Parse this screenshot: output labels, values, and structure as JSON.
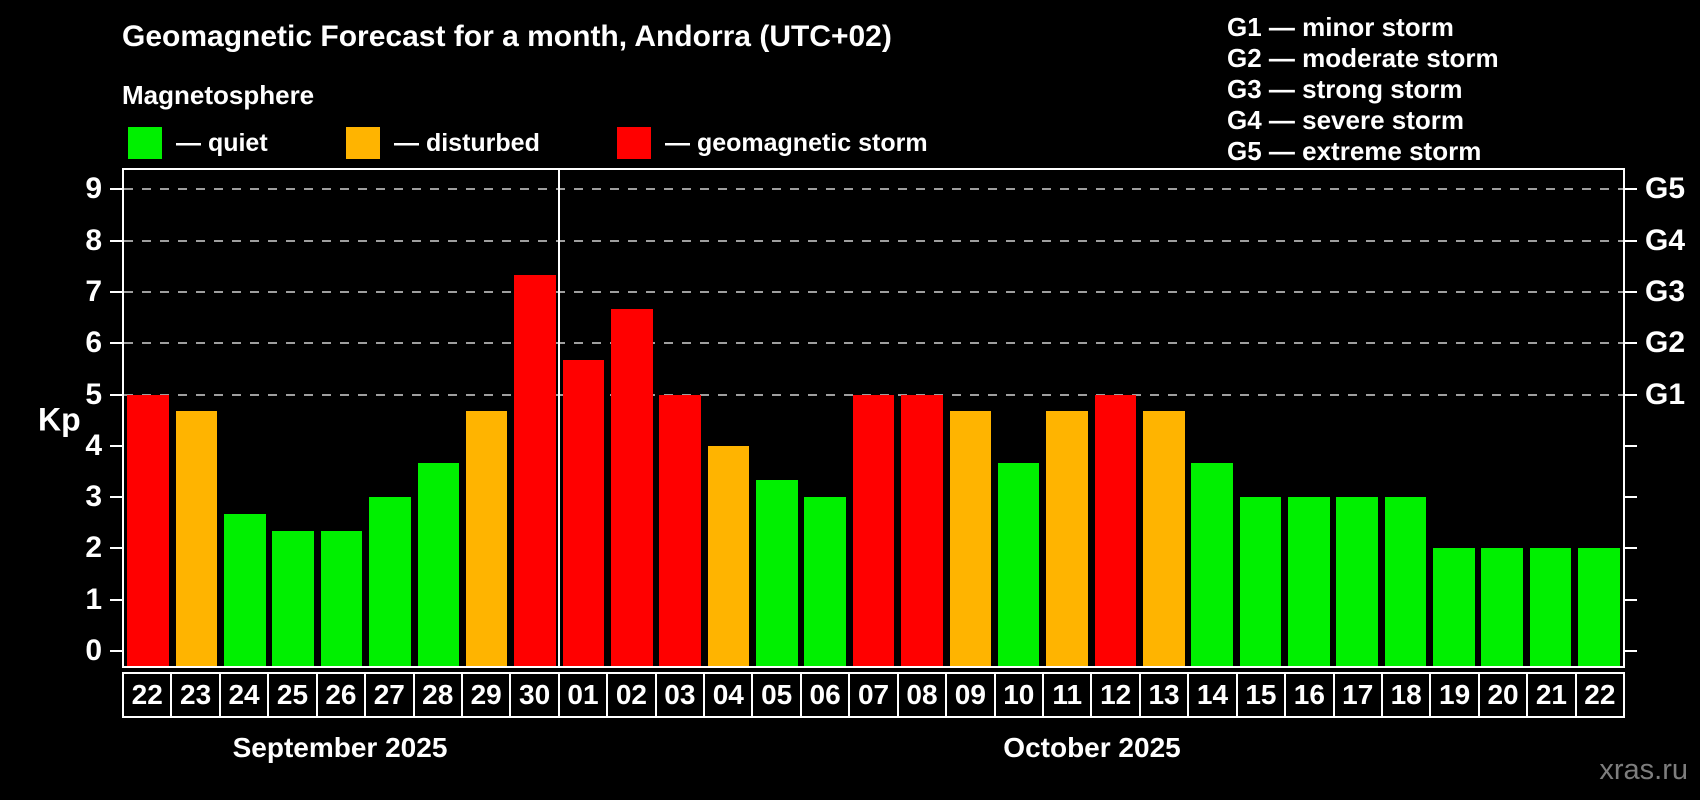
{
  "title": "Geomagnetic Forecast for a month, Andorra (UTC+02)",
  "subtitle": "Magnetosphere",
  "legend": {
    "quiet": "— quiet",
    "disturbed": "— disturbed",
    "storm": "— geomagnetic storm"
  },
  "storm_scale_legend": [
    "G1 — minor storm",
    "G2 — moderate storm",
    "G3 — strong storm",
    "G4 — severe storm",
    "G5 — extreme storm"
  ],
  "axis": {
    "ylabel": "Kp",
    "yticks": [
      0,
      1,
      2,
      3,
      4,
      5,
      6,
      7,
      8,
      9
    ],
    "right_labels": [
      {
        "label": "G1",
        "kp": 5
      },
      {
        "label": "G2",
        "kp": 6
      },
      {
        "label": "G3",
        "kp": 7
      },
      {
        "label": "G4",
        "kp": 8
      },
      {
        "label": "G5",
        "kp": 9
      }
    ],
    "grid_levels": [
      5,
      6,
      7,
      8,
      9
    ]
  },
  "months": [
    {
      "label": "September 2025",
      "days": 9
    },
    {
      "label": "October 2025",
      "days": 22
    }
  ],
  "watermark": "xras.ru",
  "colors": {
    "quiet": "#00f000",
    "disturbed": "#ffb400",
    "storm": "#ff0000",
    "background": "#000000",
    "text": "#ffffff",
    "grid": "#9e9e9e",
    "watermark": "#7d7d7d"
  },
  "chart_data": {
    "type": "bar",
    "title": "Geomagnetic Forecast for a month, Andorra (UTC+02)",
    "xlabel": "",
    "ylabel": "Kp",
    "ylim": [
      0,
      9
    ],
    "grid": "dashed horizontal lines at Kp 5,6,7,8,9 only",
    "legend_position": "top-left (quiet/disturbed/storm), top-right (G1-G5 scale)",
    "categories": [
      "22",
      "23",
      "24",
      "25",
      "26",
      "27",
      "28",
      "29",
      "30",
      "01",
      "02",
      "03",
      "04",
      "05",
      "06",
      "07",
      "08",
      "09",
      "10",
      "11",
      "12",
      "13",
      "14",
      "15",
      "16",
      "17",
      "18",
      "19",
      "20",
      "21",
      "22"
    ],
    "values": [
      5,
      4.67,
      2.67,
      2.33,
      2.33,
      3,
      3.67,
      4.67,
      7.33,
      5.67,
      6.67,
      5,
      4,
      3.33,
      3,
      5,
      5,
      4.67,
      3.67,
      4.67,
      5,
      4.67,
      3.67,
      3,
      3,
      3,
      3,
      2,
      2,
      2,
      2
    ],
    "statuses": [
      "storm",
      "disturbed",
      "quiet",
      "quiet",
      "quiet",
      "quiet",
      "quiet",
      "disturbed",
      "storm",
      "storm",
      "storm",
      "storm",
      "disturbed",
      "quiet",
      "quiet",
      "storm",
      "storm",
      "disturbed",
      "quiet",
      "disturbed",
      "storm",
      "disturbed",
      "quiet",
      "quiet",
      "quiet",
      "quiet",
      "quiet",
      "quiet",
      "quiet",
      "quiet",
      "quiet"
    ]
  }
}
